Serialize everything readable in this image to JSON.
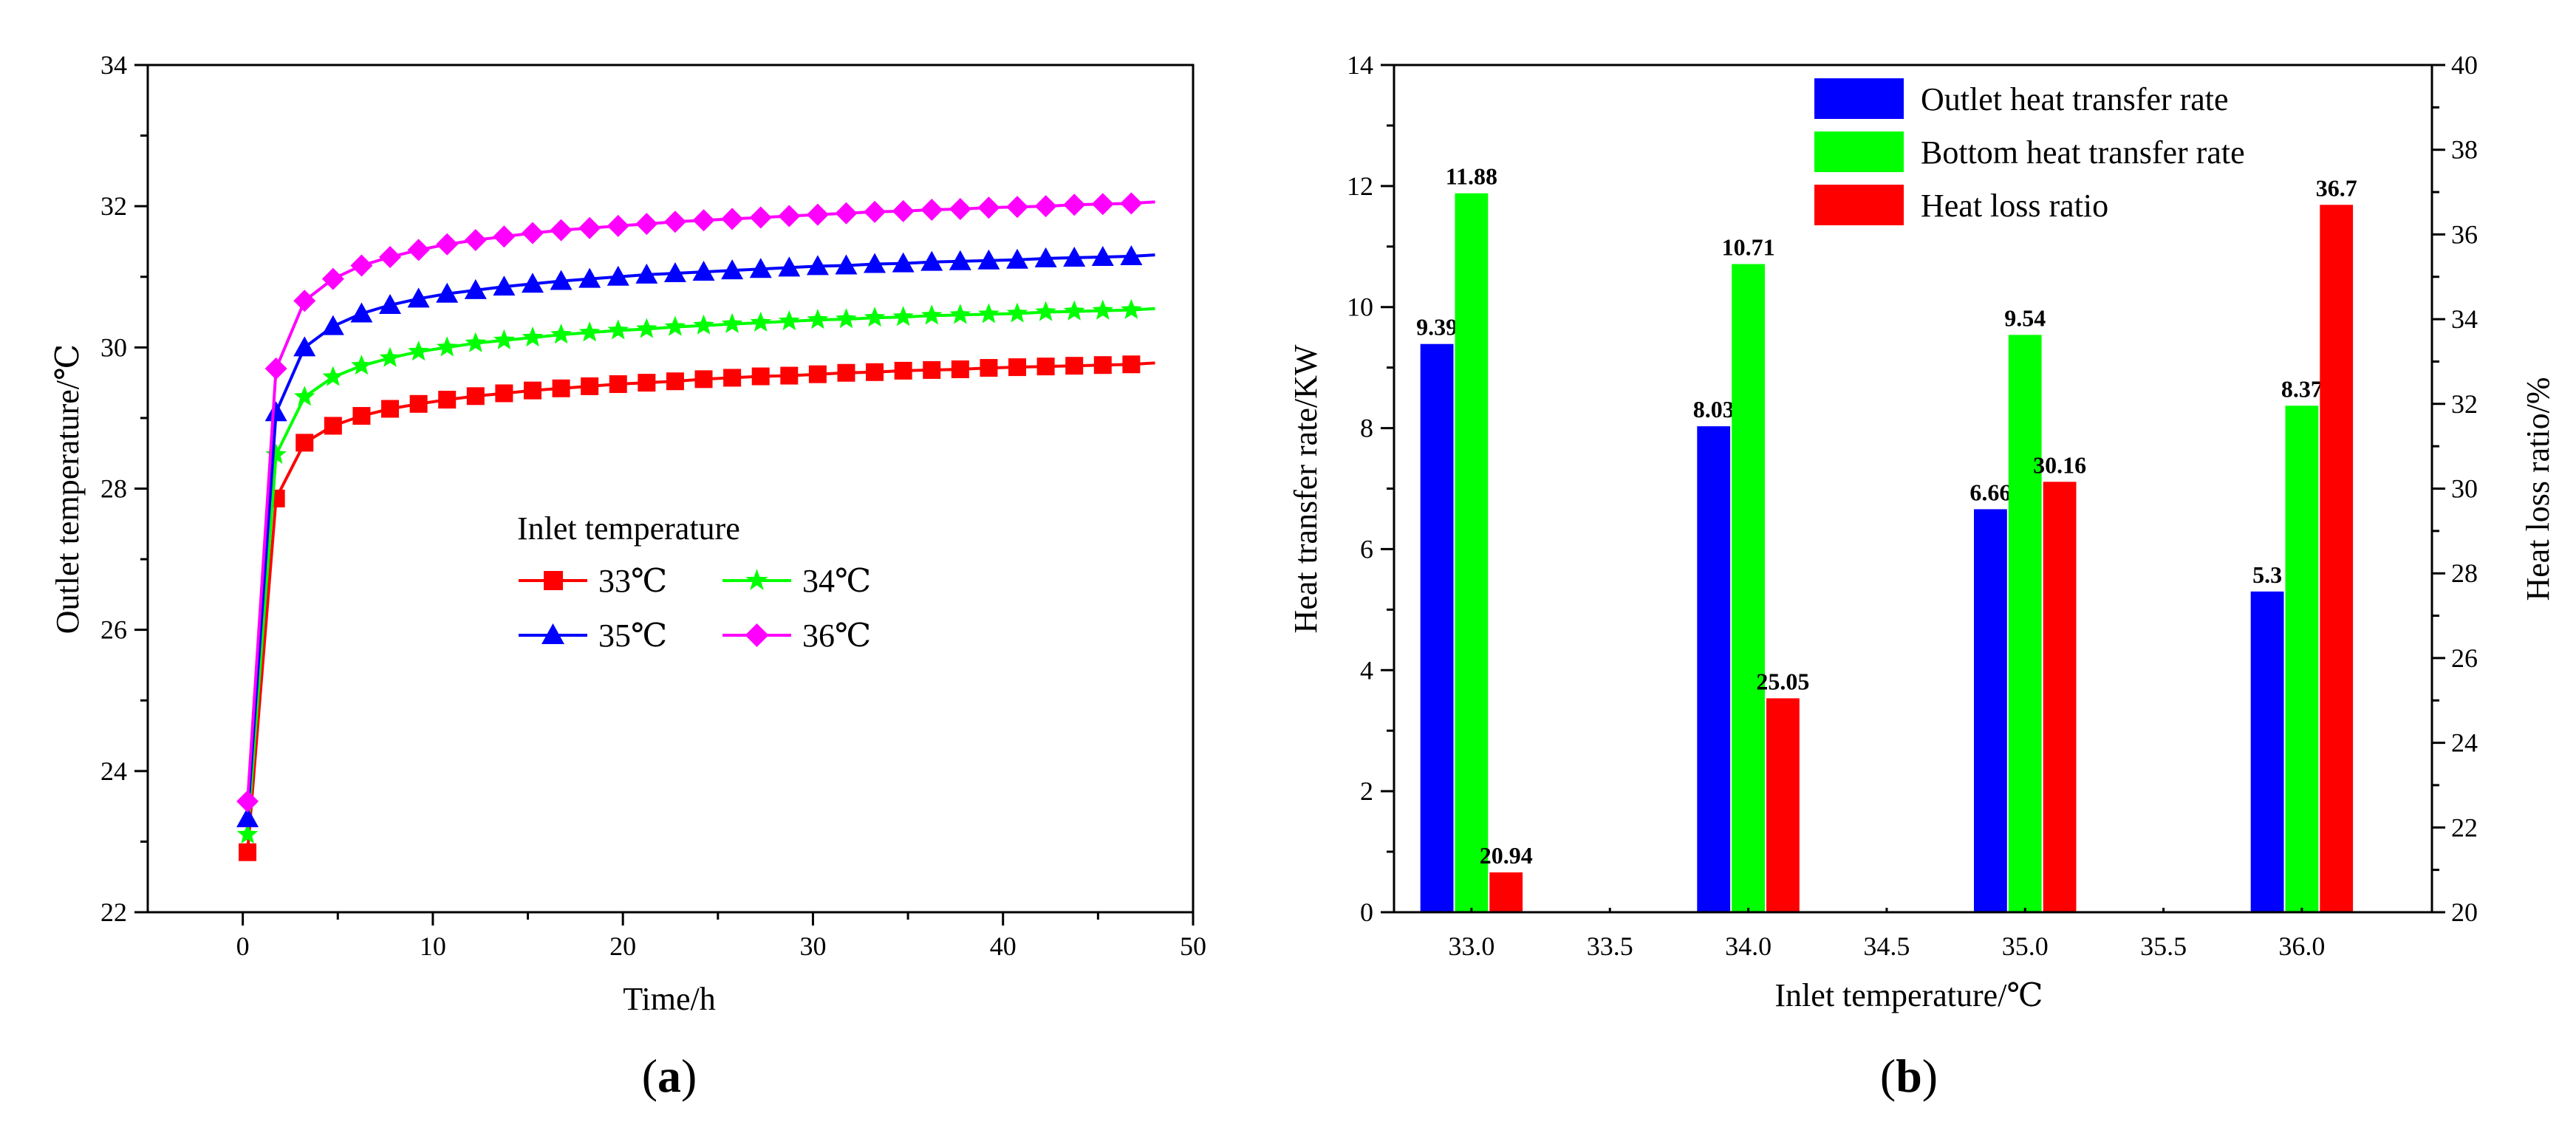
{
  "chart_data": [
    {
      "type": "line",
      "panel_label": "(a)",
      "panel_letter": "a",
      "xlabel": "Time/h",
      "ylabel": "Outlet temperature/℃",
      "xlim": [
        -5,
        50
      ],
      "ylim": [
        22,
        34
      ],
      "xticks": [
        0,
        10,
        20,
        30,
        40,
        50
      ],
      "yticks": [
        22,
        24,
        26,
        28,
        30,
        32,
        34
      ],
      "legend_title": "Inlet temperature",
      "legend_placement": "center",
      "series": [
        {
          "name": "33℃",
          "color": "#ff0000",
          "marker": "square",
          "final": 29.78,
          "x": [
            0.25,
            1.75,
            3.25,
            4.75,
            6.25,
            7.75,
            9.25,
            10.75,
            12.25,
            13.75,
            15.25,
            16.75,
            18.25,
            19.75,
            21.25,
            22.75,
            24.25,
            25.75,
            27.25,
            28.75,
            30.25,
            31.75,
            33.25,
            34.75,
            36.25,
            37.75,
            39.25,
            40.75,
            42.25,
            43.75,
            45.25,
            46.75,
            48.0
          ],
          "y": [
            22.85,
            27.86,
            28.65,
            28.89,
            29.03,
            29.13,
            29.2,
            29.26,
            29.31,
            29.35,
            29.39,
            29.42,
            29.45,
            29.48,
            29.5,
            29.52,
            29.55,
            29.57,
            29.59,
            29.6,
            29.62,
            29.64,
            29.65,
            29.67,
            29.68,
            29.69,
            29.71,
            29.72,
            29.73,
            29.74,
            29.75,
            29.76,
            29.78
          ]
        },
        {
          "name": "34℃",
          "color": "#00ff00",
          "marker": "star",
          "final": 30.55,
          "x": [
            0.25,
            1.75,
            3.25,
            4.75,
            6.25,
            7.75,
            9.25,
            10.75,
            12.25,
            13.75,
            15.25,
            16.75,
            18.25,
            19.75,
            21.25,
            22.75,
            24.25,
            25.75,
            27.25,
            28.75,
            30.25,
            31.75,
            33.25,
            34.75,
            36.25,
            37.75,
            39.25,
            40.75,
            42.25,
            43.75,
            45.25,
            46.75,
            48.0
          ],
          "y": [
            23.1,
            28.48,
            29.3,
            29.58,
            29.74,
            29.85,
            29.94,
            30.0,
            30.06,
            30.1,
            30.14,
            30.18,
            30.21,
            30.24,
            30.26,
            30.29,
            30.31,
            30.33,
            30.35,
            30.37,
            30.39,
            30.4,
            30.42,
            30.43,
            30.45,
            30.46,
            30.47,
            30.48,
            30.5,
            30.51,
            30.52,
            30.53,
            30.55
          ]
        },
        {
          "name": "35℃",
          "color": "#0000ff",
          "marker": "triangle",
          "final": 31.31,
          "x": [
            0.25,
            1.75,
            3.25,
            4.75,
            6.25,
            7.75,
            9.25,
            10.75,
            12.25,
            13.75,
            15.25,
            16.75,
            18.25,
            19.75,
            21.25,
            22.75,
            24.25,
            25.75,
            27.25,
            28.75,
            30.25,
            31.75,
            33.25,
            34.75,
            36.25,
            37.75,
            39.25,
            40.75,
            42.25,
            43.75,
            45.25,
            46.75,
            48.0
          ],
          "y": [
            23.33,
            29.08,
            30.0,
            30.3,
            30.48,
            30.6,
            30.69,
            30.76,
            30.81,
            30.86,
            30.9,
            30.94,
            30.97,
            31.0,
            31.03,
            31.05,
            31.07,
            31.09,
            31.11,
            31.13,
            31.15,
            31.16,
            31.18,
            31.19,
            31.21,
            31.22,
            31.23,
            31.24,
            31.26,
            31.27,
            31.28,
            31.29,
            31.31
          ]
        },
        {
          "name": "36℃",
          "color": "#ff00ff",
          "marker": "diamond",
          "final": 32.06,
          "x": [
            0.25,
            1.75,
            3.25,
            4.75,
            6.25,
            7.75,
            9.25,
            10.75,
            12.25,
            13.75,
            15.25,
            16.75,
            18.25,
            19.75,
            21.25,
            22.75,
            24.25,
            25.75,
            27.25,
            28.75,
            30.25,
            31.75,
            33.25,
            34.75,
            36.25,
            37.75,
            39.25,
            40.75,
            42.25,
            43.75,
            45.25,
            46.75,
            48.0
          ],
          "y": [
            23.57,
            29.7,
            30.66,
            30.97,
            31.16,
            31.28,
            31.38,
            31.46,
            31.52,
            31.57,
            31.62,
            31.66,
            31.69,
            31.72,
            31.75,
            31.78,
            31.8,
            31.82,
            31.84,
            31.86,
            31.88,
            31.9,
            31.92,
            31.93,
            31.95,
            31.96,
            31.98,
            31.99,
            32.0,
            32.02,
            32.03,
            32.04,
            32.06
          ]
        }
      ]
    },
    {
      "type": "bar",
      "panel_label": "(b)",
      "panel_letter": "b",
      "xlabel": "Inlet temperature/℃",
      "ylabel": "Heat transfer rate/KW",
      "y2label": "Heat loss ratio/%",
      "xlim": [
        32.72,
        36.47
      ],
      "ylim": [
        0,
        14
      ],
      "y2lim": [
        20,
        40
      ],
      "xticks": [
        "33.0",
        "33.5",
        "34.0",
        "34.5",
        "35.0",
        "35.5",
        "36.0"
      ],
      "yticks": [
        0,
        2,
        4,
        6,
        8,
        10,
        12,
        14
      ],
      "y2ticks": [
        20,
        22,
        24,
        26,
        28,
        30,
        32,
        34,
        36,
        38,
        40
      ],
      "legend_placement": "top-right",
      "categories": [
        33.0,
        34.0,
        35.0,
        36.0
      ],
      "series": [
        {
          "name": "Outlet heat transfer rate",
          "color": "#0000ff",
          "axis": "left",
          "offset": -0.125,
          "values": [
            9.39,
            8.03,
            6.66,
            5.3
          ],
          "labels": [
            "9.39",
            "8.03",
            "6.66",
            "5.3"
          ]
        },
        {
          "name": "Bottom heat transfer rate",
          "color": "#00ff00",
          "axis": "left",
          "offset": 0.0,
          "values": [
            11.88,
            10.71,
            9.54,
            8.37
          ],
          "labels": [
            "11.88",
            "10.71",
            "9.54",
            "8.37"
          ]
        },
        {
          "name": "Heat loss ratio",
          "color": "#ff0000",
          "axis": "right",
          "offset": 0.125,
          "values": [
            20.94,
            25.05,
            30.16,
            36.7
          ],
          "labels": [
            "20.94",
            "25.05",
            "30.16",
            "36.7"
          ]
        }
      ]
    }
  ]
}
